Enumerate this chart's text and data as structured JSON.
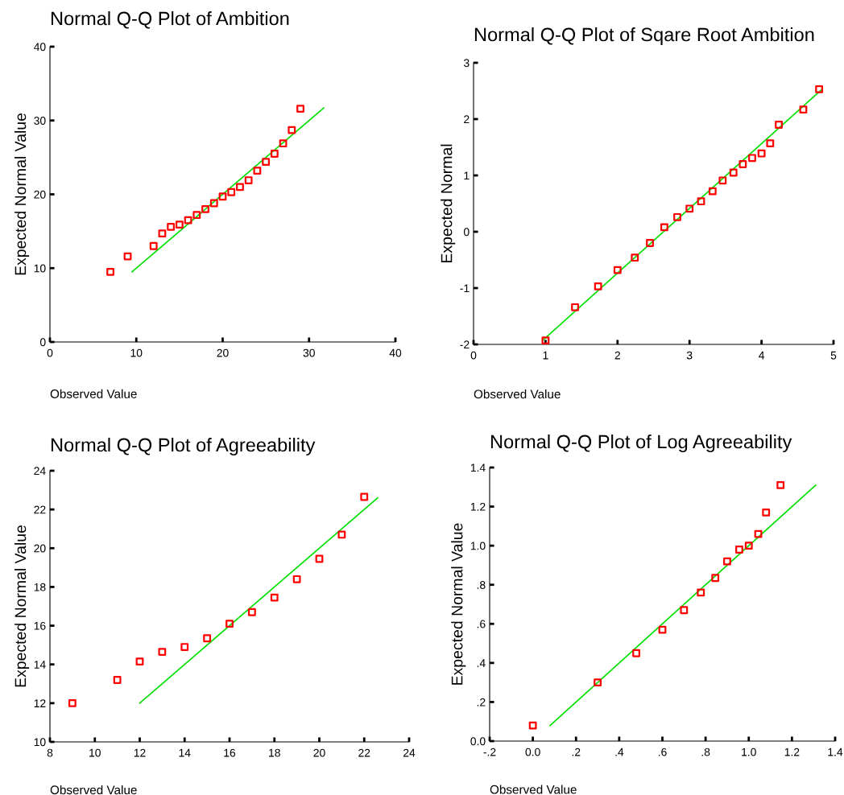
{
  "chart_data": [
    {
      "type": "scatter",
      "title": "Normal Q-Q Plot of Ambition",
      "xlabel": "Observed Value",
      "ylabel": "Expected Normal Value",
      "xlim": [
        0,
        40
      ],
      "xticks": [
        0,
        10,
        20,
        30,
        40
      ],
      "ylim": [
        0,
        40
      ],
      "yticks": [
        0,
        10,
        20,
        30,
        40
      ],
      "grid": false,
      "marker": "square",
      "series": [
        {
          "color": "#ff0000",
          "x": [
            7,
            9,
            12,
            13,
            14,
            15,
            16,
            17,
            18,
            19,
            20,
            21,
            22,
            23,
            24,
            25,
            26,
            27,
            28,
            29
          ],
          "values": [
            9.5,
            11.6,
            13,
            14.7,
            15.6,
            15.9,
            16.5,
            17.2,
            18,
            18.8,
            19.7,
            20.3,
            21,
            21.9,
            23.2,
            24.4,
            25.5,
            26.9,
            28.7,
            31.6
          ]
        },
        {
          "type": "line",
          "marker": "none",
          "color": "#00e000",
          "x": [
            9.5,
            31.7
          ],
          "values": [
            9.5,
            31.7
          ]
        }
      ]
    },
    {
      "type": "scatter",
      "title": "Normal Q-Q Plot of Sqare Root Ambition",
      "xlabel": "Observed Value",
      "ylabel": "Expected Normal",
      "xlim": [
        0,
        5
      ],
      "xticks": [
        0,
        1,
        2,
        3,
        4,
        5
      ],
      "ylim": [
        -2,
        3
      ],
      "yticks": [
        {
          "value": -2,
          "label": "-2"
        },
        {
          "value": -1,
          "label": "-1"
        },
        0,
        1,
        2,
        3
      ],
      "grid": false,
      "marker": "square",
      "series": [
        {
          "color": "#ff0000",
          "x": [
            1,
            1.41,
            1.73,
            2,
            2.24,
            2.45,
            2.65,
            2.83,
            3,
            3.16,
            3.32,
            3.46,
            3.61,
            3.74,
            3.87,
            4,
            4.12,
            4.24,
            4.58,
            4.8
          ],
          "values": [
            -1.93,
            -1.34,
            -0.97,
            -0.68,
            -0.46,
            -0.2,
            0.08,
            0.26,
            0.41,
            0.54,
            0.72,
            0.91,
            1.05,
            1.2,
            1.31,
            1.39,
            1.57,
            1.9,
            2.17,
            2.53
          ]
        },
        {
          "type": "line",
          "marker": "none",
          "color": "#00e000",
          "x": [
            0.96,
            4.84
          ],
          "values": [
            -1.93,
            2.53
          ]
        }
      ]
    },
    {
      "type": "scatter",
      "title": "Normal Q-Q Plot of Agreeability",
      "xlabel": "Observed Value",
      "ylabel": "Expected Normal Value",
      "xlim": [
        8,
        24
      ],
      "xticks": [
        8,
        10,
        12,
        14,
        16,
        18,
        20,
        22,
        24
      ],
      "ylim": [
        10,
        24
      ],
      "yticks": [
        10,
        12,
        14,
        16,
        18,
        20,
        22,
        24
      ],
      "grid": false,
      "marker": "square",
      "series": [
        {
          "color": "#ff0000",
          "x": [
            9,
            11,
            12,
            13,
            14,
            15,
            16,
            17,
            18,
            19,
            20,
            21,
            22
          ],
          "values": [
            12,
            13.2,
            14.15,
            14.65,
            14.9,
            15.35,
            16.1,
            16.7,
            17.45,
            18.4,
            19.45,
            20.7,
            22.65
          ]
        },
        {
          "type": "line",
          "marker": "none",
          "color": "#00e000",
          "x": [
            12,
            22.6
          ],
          "values": [
            12,
            22.6
          ]
        }
      ]
    },
    {
      "type": "scatter",
      "title": "Normal Q-Q Plot of Log Agreeability",
      "xlabel": "Observed Value",
      "ylabel": "Expected Normal Value",
      "xlim": [
        -0.2,
        1.4
      ],
      "xticks": [
        {
          "value": -0.2,
          "label": "-.2"
        },
        {
          "value": 0,
          "label": "0.0"
        },
        {
          "value": 0.2,
          "label": ".2"
        },
        {
          "value": 0.4,
          "label": ".4"
        },
        {
          "value": 0.6,
          "label": ".6"
        },
        {
          "value": 0.8,
          "label": ".8"
        },
        {
          "value": 1.0,
          "label": "1.0"
        },
        {
          "value": 1.2,
          "label": "1.2"
        },
        {
          "value": 1.4,
          "label": "1.4"
        }
      ],
      "ylim": [
        0,
        1.4
      ],
      "yticks": [
        {
          "value": 0,
          "label": "0.0"
        },
        {
          "value": 0.2,
          "label": ".2"
        },
        {
          "value": 0.4,
          "label": ".4"
        },
        {
          "value": 0.6,
          "label": ".6"
        },
        {
          "value": 0.8,
          "label": ".8"
        },
        {
          "value": 1.0,
          "label": "1.0"
        },
        {
          "value": 1.2,
          "label": "1.2"
        },
        {
          "value": 1.4,
          "label": "1.4"
        }
      ],
      "grid": false,
      "marker": "square",
      "series": [
        {
          "color": "#ff0000",
          "x": [
            0,
            0.3,
            0.479,
            0.6,
            0.7,
            0.778,
            0.845,
            0.9,
            0.956,
            1.0,
            1.044,
            1.08,
            1.147
          ],
          "values": [
            0.08,
            0.3,
            0.45,
            0.57,
            0.67,
            0.76,
            0.835,
            0.92,
            0.98,
            1.0,
            1.06,
            1.17,
            1.31
          ]
        },
        {
          "type": "line",
          "marker": "none",
          "color": "#00e000",
          "x": [
            0.08,
            1.31
          ],
          "values": [
            0.08,
            1.31
          ]
        }
      ]
    }
  ]
}
